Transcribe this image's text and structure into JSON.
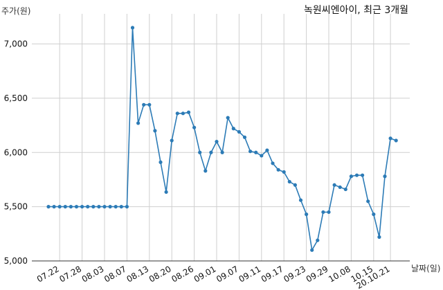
{
  "chart_data": {
    "type": "line",
    "title": "녹원씨엔아이, 최근 3개월",
    "ylabel": "주가(원)",
    "xlabel": "날짜(일)",
    "ylim": [
      5000,
      7150
    ],
    "yticks": [
      5000,
      5500,
      6000,
      6500,
      7000
    ],
    "ytick_labels": [
      "5,000",
      "5,500",
      "6,000",
      "6,500",
      "7,000"
    ],
    "grid": true,
    "xticks": [
      {
        "index": 2,
        "label": "07.22"
      },
      {
        "index": 6,
        "label": "07.28"
      },
      {
        "index": 10,
        "label": "08.03"
      },
      {
        "index": 14,
        "label": "08.07"
      },
      {
        "index": 18,
        "label": "08.13"
      },
      {
        "index": 22,
        "label": "08.20"
      },
      {
        "index": 26,
        "label": "08.26"
      },
      {
        "index": 30,
        "label": "09.01"
      },
      {
        "index": 34,
        "label": "09.07"
      },
      {
        "index": 38,
        "label": "09.11"
      },
      {
        "index": 42,
        "label": "09.17"
      },
      {
        "index": 46,
        "label": "09.23"
      },
      {
        "index": 50,
        "label": "09.29"
      },
      {
        "index": 54,
        "label": "10.08"
      },
      {
        "index": 58,
        "label": "10.15"
      },
      {
        "index": 61,
        "label": "20.10.21"
      }
    ],
    "values": [
      5500,
      5500,
      5500,
      5500,
      5500,
      5500,
      5500,
      5500,
      5500,
      5500,
      5500,
      5500,
      5500,
      5500,
      5500,
      7150,
      6270,
      6440,
      6440,
      6200,
      5910,
      5635,
      6110,
      6360,
      6360,
      6370,
      6230,
      6000,
      5830,
      6000,
      6100,
      6000,
      6320,
      6220,
      6190,
      6140,
      6010,
      6000,
      5970,
      6020,
      5900,
      5840,
      5820,
      5730,
      5700,
      5560,
      5430,
      5100,
      5190,
      5450,
      5450,
      5700,
      5680,
      5660,
      5780,
      5790,
      5790,
      5550,
      5430,
      5220,
      5780,
      6130,
      6110
    ]
  }
}
